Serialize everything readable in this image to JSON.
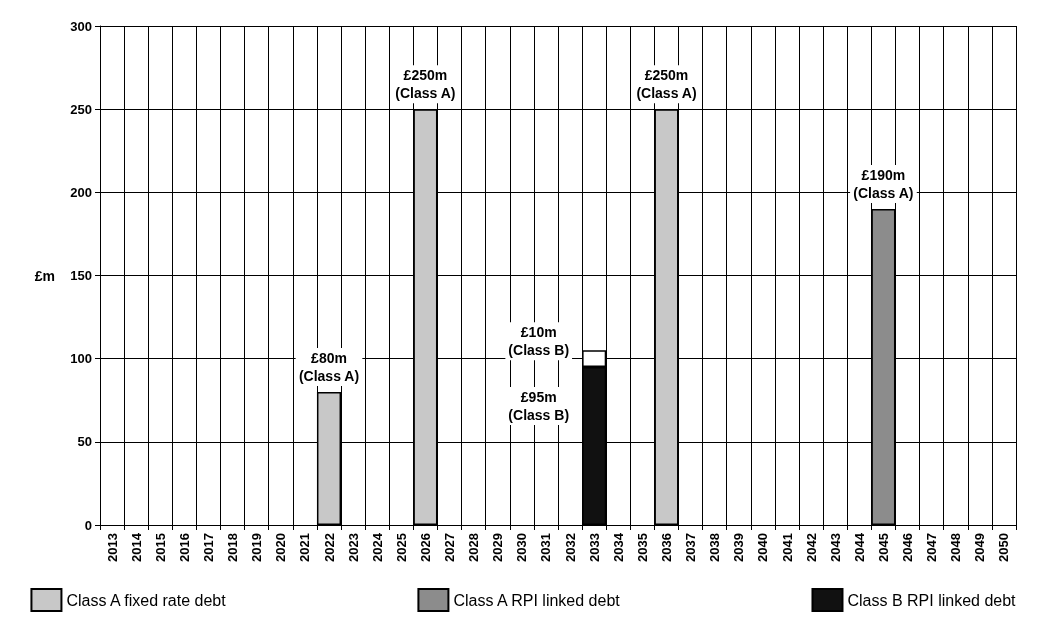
{
  "chart_data": {
    "type": "bar",
    "ylabel": "£m",
    "stacked": true,
    "grid": true,
    "legend": "bottom",
    "categories": [
      "2013",
      "2014",
      "2015",
      "2016",
      "2017",
      "2018",
      "2019",
      "2020",
      "2021",
      "2022",
      "2023",
      "2024",
      "2025",
      "2026",
      "2027",
      "2028",
      "2029",
      "2030",
      "2031",
      "2032",
      "2033",
      "2034",
      "2035",
      "2036",
      "2037",
      "2038",
      "2039",
      "2040",
      "2041",
      "2042",
      "2043",
      "2044",
      "2045",
      "2046",
      "2047",
      "2048",
      "2049",
      "2050"
    ],
    "ylim": [
      0,
      300
    ],
    "yticks": [
      0,
      50,
      100,
      150,
      200,
      250,
      300
    ],
    "series": [
      {
        "name": "Class A fixed rate debt",
        "color": "#c8c8c8",
        "values": [
          null,
          null,
          null,
          null,
          null,
          null,
          null,
          null,
          null,
          80,
          null,
          null,
          null,
          250,
          null,
          null,
          null,
          null,
          null,
          null,
          null,
          null,
          null,
          250,
          null,
          null,
          null,
          null,
          null,
          null,
          null,
          null,
          null,
          null,
          null,
          null,
          null,
          null
        ]
      },
      {
        "name": "Class A RPI linked debt",
        "color": "#8c8c8c",
        "values": [
          null,
          null,
          null,
          null,
          null,
          null,
          null,
          null,
          null,
          null,
          null,
          null,
          null,
          null,
          null,
          null,
          null,
          null,
          null,
          null,
          null,
          null,
          null,
          null,
          null,
          null,
          null,
          null,
          null,
          null,
          null,
          null,
          190,
          null,
          null,
          null,
          null,
          null
        ]
      },
      {
        "name": "Class B RPI linked debt",
        "color": "#111111",
        "values": [
          null,
          null,
          null,
          null,
          null,
          null,
          null,
          null,
          null,
          null,
          null,
          null,
          null,
          null,
          null,
          null,
          null,
          null,
          null,
          null,
          95,
          null,
          null,
          null,
          null,
          null,
          null,
          null,
          null,
          null,
          null,
          null,
          null,
          null,
          null,
          null,
          null,
          null
        ]
      },
      {
        "color": "#ffffff",
        "values": [
          null,
          null,
          null,
          null,
          null,
          null,
          null,
          null,
          null,
          null,
          null,
          null,
          null,
          null,
          null,
          null,
          null,
          null,
          null,
          null,
          10,
          null,
          null,
          null,
          null,
          null,
          null,
          null,
          null,
          null,
          null,
          null,
          null,
          null,
          null,
          null,
          null,
          null
        ]
      }
    ],
    "annotations": [
      {
        "text": "£80m\n(Class A)",
        "x": "2022",
        "y": 80
      },
      {
        "text": "£250m\n(Class A)",
        "x": "2026",
        "y": 250
      },
      {
        "text": "£10m\n(Class B)",
        "x": "2033",
        "y": 105
      },
      {
        "text": "£95m\n(Class B)",
        "x": "2033",
        "y": 95
      },
      {
        "text": "£250m\n(Class A)",
        "x": "2036",
        "y": 250
      },
      {
        "text": "£190m\n(Class A)",
        "x": "2045",
        "y": 190
      }
    ]
  }
}
